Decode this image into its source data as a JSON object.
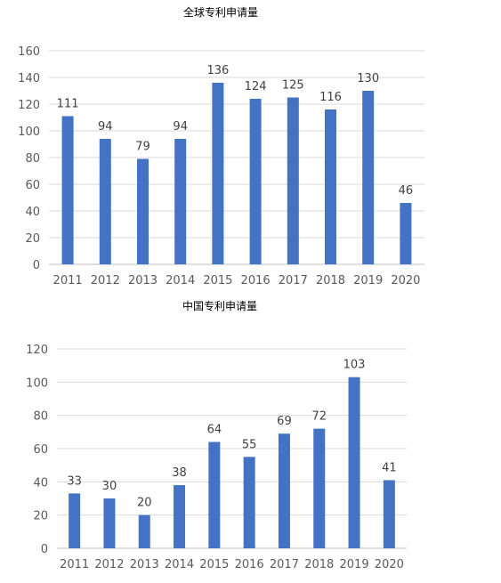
{
  "chart_data": [
    {
      "type": "bar",
      "title": "全球专利申请量",
      "categories": [
        "2011",
        "2012",
        "2013",
        "2014",
        "2015",
        "2016",
        "2017",
        "2018",
        "2019",
        "2020"
      ],
      "values": [
        111,
        94,
        79,
        94,
        136,
        124,
        125,
        116,
        130,
        46
      ],
      "xlabel": "",
      "ylabel": "",
      "ylim": [
        0,
        160
      ],
      "yticks": [
        0,
        20,
        40,
        60,
        80,
        100,
        120,
        140,
        160
      ],
      "grid": true,
      "legend": "none",
      "bar_color": "#4472C4"
    },
    {
      "type": "bar",
      "title": "中国专利申请量",
      "categories": [
        "2011",
        "2012",
        "2013",
        "2014",
        "2015",
        "2016",
        "2017",
        "2018",
        "2019",
        "2020"
      ],
      "values": [
        33,
        30,
        20,
        38,
        64,
        55,
        69,
        72,
        103,
        41
      ],
      "xlabel": "",
      "ylabel": "",
      "ylim": [
        0,
        120
      ],
      "yticks": [
        0,
        20,
        40,
        60,
        80,
        100,
        120
      ],
      "grid": true,
      "legend": "none",
      "bar_color": "#4472C4"
    }
  ]
}
